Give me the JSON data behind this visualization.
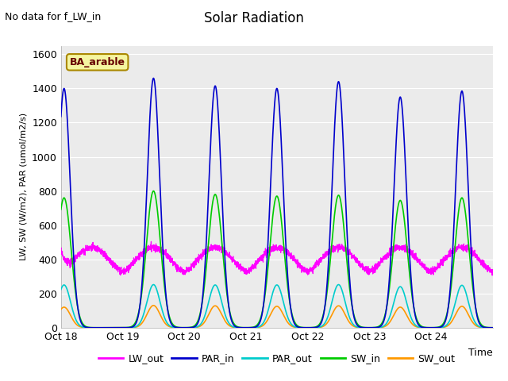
{
  "title": "Solar Radiation",
  "xlabel": "Time",
  "ylabel": "LW, SW (W/m2), PAR (umol/m2/s)",
  "note": "No data for f_LW_in",
  "legend_label": "BA_arable",
  "ylim": [
    0,
    1650
  ],
  "yticks": [
    0,
    200,
    400,
    600,
    800,
    1000,
    1200,
    1400,
    1600
  ],
  "xtick_labels": [
    "Oct 18",
    "Oct 19",
    "Oct 20",
    "Oct 21",
    "Oct 22",
    "Oct 23",
    "Oct 24"
  ],
  "series_colors": {
    "LW_out": "#ff00ff",
    "PAR_in": "#0000cc",
    "PAR_out": "#00cccc",
    "SW_in": "#00cc00",
    "SW_out": "#ff9900"
  },
  "bg_color": "#ebebeb",
  "n_days": 7,
  "day_points": 500
}
